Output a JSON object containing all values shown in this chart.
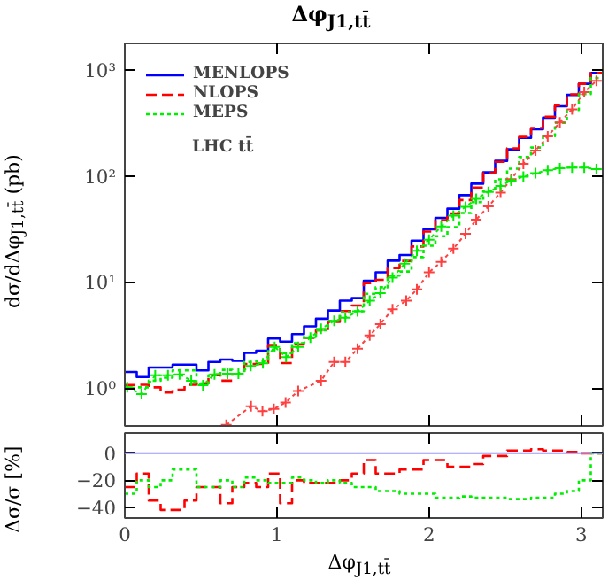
{
  "chart_data": [
    {
      "type": "histogram",
      "title": "Δφ$_{J1,tt̄}$",
      "ylabel": "dσ/dΔφ$_{J1,tt̄}$ (pb)",
      "log": "y",
      "xlim": [
        0,
        3.1416
      ],
      "xticks": [
        0,
        1,
        2,
        3
      ],
      "ylim": [
        0.45,
        1800
      ],
      "yticks": [
        {
          "value": 1,
          "label": "10⁰"
        },
        {
          "value": 10,
          "label": "10¹"
        },
        {
          "value": 100,
          "label": "10²"
        },
        {
          "value": 1000,
          "label": "10³"
        }
      ],
      "tick_labels": "y",
      "grid": false,
      "legend": "top left",
      "annotations": [
        "LHC tt̄"
      ],
      "bins": [
        0,
        0.0785,
        0.1571,
        0.2356,
        0.3142,
        0.3927,
        0.4712,
        0.5498,
        0.6283,
        0.7069,
        0.7854,
        0.8639,
        0.9425,
        1.021,
        1.0996,
        1.1781,
        1.2566,
        1.3352,
        1.4137,
        1.4923,
        1.5708,
        1.6493,
        1.7279,
        1.8064,
        1.885,
        1.9635,
        2.042,
        2.1206,
        2.1991,
        2.2777,
        2.3562,
        2.4347,
        2.5133,
        2.5918,
        2.6704,
        2.7489,
        2.8274,
        2.906,
        2.9845,
        3.0631,
        3.1416
      ],
      "series": [
        {
          "name": "MENLOPS",
          "color": "#0000ff",
          "line_style": "solid",
          "values": [
            1.45,
            1.3,
            1.6,
            1.6,
            1.7,
            1.7,
            1.5,
            1.8,
            1.9,
            1.85,
            2.2,
            2.3,
            3.0,
            2.8,
            3.3,
            3.9,
            4.6,
            5.5,
            6.8,
            7.2,
            10.5,
            12.6,
            16.2,
            18.3,
            25,
            32,
            41,
            50,
            67,
            86,
            110,
            141,
            181,
            232,
            280,
            360,
            460,
            590,
            750,
            950
          ]
        },
        {
          "name": "NLOPS",
          "color": "#ff0000",
          "line_style": "dashed",
          "values": [
            1.09,
            1.1,
            1.04,
            0.93,
            0.99,
            1.1,
            1.13,
            1.35,
            1.2,
            1.39,
            1.72,
            1.73,
            2.55,
            1.76,
            2.64,
            3.04,
            3.59,
            4.29,
            5.44,
            6.12,
            9.98,
            10.7,
            13.8,
            16.1,
            22,
            30.4,
            39,
            45,
            60.3,
            79,
            108,
            138,
            185,
            237,
            288,
            367,
            469,
            596,
            750,
            950
          ]
        },
        {
          "name": "MEPS",
          "color": "#00ee00",
          "line_style": "dotted",
          "values": [
            1.02,
            1.04,
            1.2,
            1.28,
            1.5,
            1.5,
            1.13,
            1.35,
            1.52,
            1.39,
            1.8,
            1.84,
            2.34,
            2.18,
            2.71,
            3.12,
            3.59,
            4.4,
            5.3,
            5.4,
            7.9,
            9.1,
            11.7,
            12.8,
            17.5,
            22.4,
            27.5,
            33.5,
            45.6,
            57.6,
            73.7,
            94.5,
            119,
            153,
            188,
            241,
            322,
            425,
            600,
            850
          ]
        },
        {
          "type": "line",
          "color": "#ff4040",
          "line_style": "dotted",
          "marker": "cross",
          "x": [
            0.667,
            0.83,
            0.905,
            0.98,
            1.057,
            1.14,
            1.29,
            1.376,
            1.45,
            1.53,
            1.61,
            1.68,
            1.76,
            1.85,
            1.92,
            2.0,
            2.08,
            2.16,
            2.24,
            2.31,
            2.39,
            2.47,
            2.54,
            2.62,
            2.7,
            2.78,
            2.86,
            2.94,
            3.02,
            3.1
          ],
          "values": [
            0.46,
            0.69,
            0.62,
            0.65,
            0.75,
            0.96,
            1.2,
            1.8,
            1.8,
            2.4,
            3.2,
            4.1,
            5.65,
            6.8,
            8.7,
            12.6,
            15.8,
            21,
            29,
            39.5,
            52.5,
            71,
            95,
            132,
            176,
            240,
            325,
            430,
            625,
            800
          ]
        },
        {
          "type": "line",
          "color": "#00ee00",
          "line_style": "dotted",
          "marker": "cross",
          "x": [
            0.016,
            0.11,
            0.2,
            0.284,
            0.36,
            0.437,
            0.514,
            0.59,
            0.675,
            0.747,
            0.828,
            0.908,
            0.985,
            1.06,
            1.14,
            1.22,
            1.29,
            1.376,
            1.45,
            1.53,
            1.61,
            1.68,
            1.76,
            1.84,
            1.92,
            2.0,
            2.08,
            2.16,
            2.24,
            2.31,
            2.39,
            2.47,
            2.54,
            2.62,
            2.7,
            2.78,
            2.86,
            2.94,
            3.02,
            3.1
          ],
          "values": [
            1.04,
            0.9,
            1.35,
            1.35,
            1.38,
            1.2,
            1.09,
            1.38,
            1.4,
            1.4,
            1.65,
            1.75,
            2.5,
            2.0,
            2.5,
            3.05,
            3.7,
            4.4,
            4.7,
            5.4,
            6.8,
            8.0,
            11.2,
            15.2,
            20,
            25.5,
            34,
            43,
            52,
            62,
            72,
            82,
            92,
            100,
            108,
            115,
            120,
            122,
            122,
            118
          ]
        }
      ]
    },
    {
      "type": "histogram",
      "xlabel": "Δφ$_{J1,tt̄}$",
      "ylabel": "Δσ/σ [%]",
      "xlim": [
        0,
        3.1416
      ],
      "xticks": [
        0,
        1,
        2,
        3
      ],
      "ylim": [
        -48,
        15
      ],
      "yticks": [
        0,
        -20,
        -40
      ],
      "grid": false,
      "ref_lines": [
        {
          "axis": "y",
          "value": 0,
          "color": "#9999ff"
        }
      ],
      "bins": [
        0,
        0.0785,
        0.1571,
        0.2356,
        0.3142,
        0.3927,
        0.4712,
        0.5498,
        0.6283,
        0.7069,
        0.7854,
        0.8639,
        0.9425,
        1.021,
        1.0996,
        1.1781,
        1.2566,
        1.3352,
        1.4137,
        1.4923,
        1.5708,
        1.6493,
        1.7279,
        1.8064,
        1.885,
        1.9635,
        2.042,
        2.1206,
        2.1991,
        2.2777,
        2.3562,
        2.4347,
        2.5133,
        2.5918,
        2.6704,
        2.7489,
        2.8274,
        2.906,
        2.9845,
        3.0631,
        3.1416
      ],
      "series": [
        {
          "color": "#ff0000",
          "line_style": "dashed",
          "values": [
            -25,
            -15,
            -35,
            -42,
            -42,
            -35,
            -25,
            -25,
            -37,
            -25,
            -22,
            -25,
            -15,
            -37,
            -20,
            -22,
            -22,
            -22,
            -20,
            -15,
            -5,
            -15,
            -15,
            -12,
            -12,
            -5,
            -5,
            -10,
            -10,
            -8,
            -2,
            -2,
            2,
            2,
            3,
            2,
            2,
            1,
            0,
            0
          ]
        },
        {
          "color": "#00ee00",
          "line_style": "dotted",
          "values": [
            -30,
            -20,
            -25,
            -20,
            -12,
            -12,
            -25,
            -25,
            -20,
            -25,
            -18,
            -20,
            -22,
            -22,
            -18,
            -20,
            -22,
            -20,
            -22,
            -25,
            -25,
            -28,
            -28,
            -30,
            -30,
            -30,
            -33,
            -33,
            -32,
            -33,
            -33,
            -33,
            -34,
            -34,
            -33,
            -33,
            -30,
            -28,
            -20,
            0
          ]
        }
      ]
    }
  ]
}
